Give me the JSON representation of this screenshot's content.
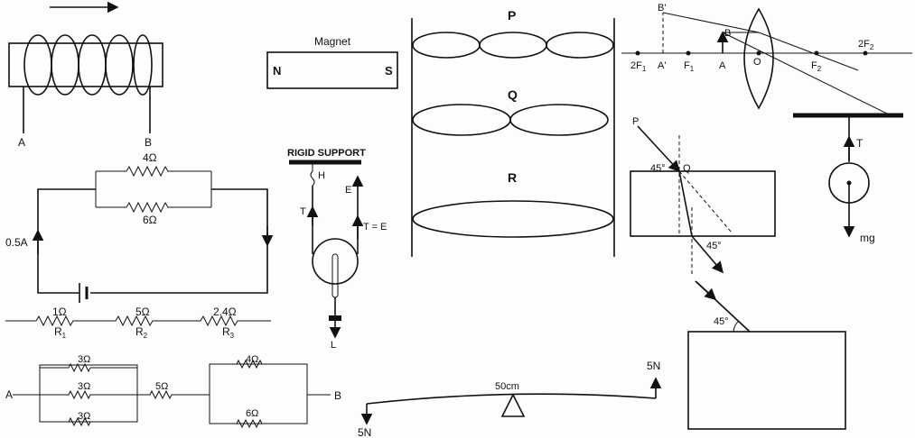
{
  "solenoid": {
    "terminal_a": "A",
    "terminal_b": "B"
  },
  "magnet": {
    "title": "Magnet",
    "north": "N",
    "south": "S"
  },
  "loops": {
    "label_p": "P",
    "label_q": "Q",
    "label_r": "R"
  },
  "lens": {
    "b_prime": "B'",
    "two_f1": "2F",
    "two_f1_sub": "1",
    "a_prime": "A'",
    "f1": "F",
    "f1_sub": "1",
    "a": "A",
    "b": "B",
    "o": "O",
    "f2": "F",
    "f2_sub": "2",
    "two_f2": "2F",
    "two_f2_sub": "2"
  },
  "pendulum": {
    "t": "T",
    "mg": "mg"
  },
  "circuit1": {
    "r1": "4Ω",
    "r2": "6Ω",
    "current": "0.5A"
  },
  "pulley": {
    "support": "RIGID SUPPORT",
    "h": "H",
    "e": "E",
    "t": "T",
    "t_eq_e": "T = E",
    "l": "L"
  },
  "refraction": {
    "p": "P",
    "q": "Q",
    "angle_in": "45°",
    "angle_out": "45°"
  },
  "series": {
    "r1": "1Ω",
    "r2": "5Ω",
    "r3": "2.4Ω",
    "n1": "R",
    "n1_sub": "1",
    "n2": "R",
    "n2_sub": "2",
    "n3": "R",
    "n3_sub": "3"
  },
  "block": {
    "angle": "45°"
  },
  "network": {
    "a": "A",
    "b": "B",
    "r_top": "3Ω",
    "r_mid": "3Ω",
    "r_bot": "3Ω",
    "r_series": "5Ω",
    "r_upper": "4Ω",
    "r_lower": "6Ω"
  },
  "lever": {
    "force_right": "5N",
    "force_left": "5N",
    "mid": "50cm"
  }
}
